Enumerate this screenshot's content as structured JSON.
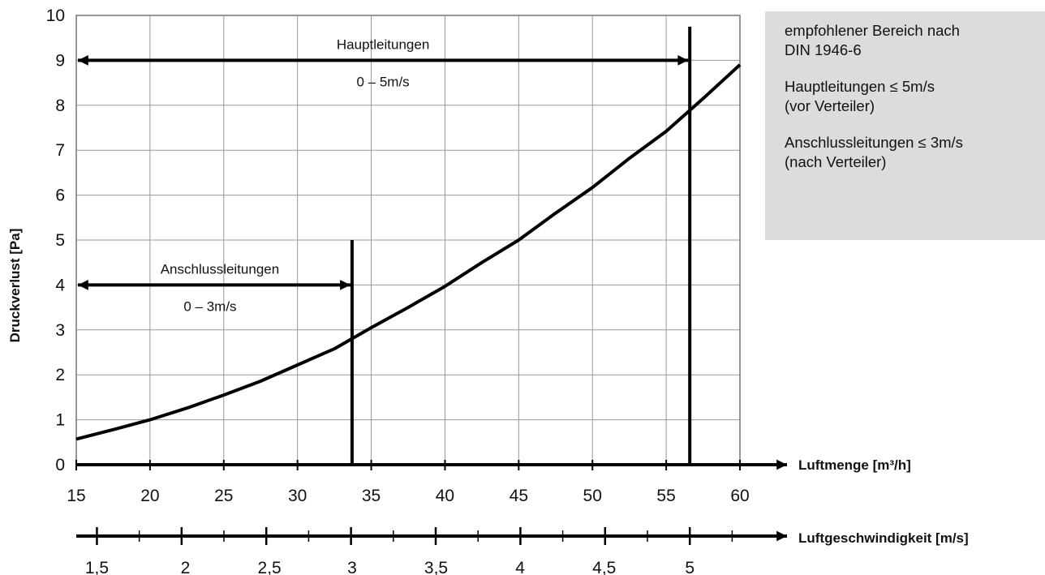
{
  "chart_data": {
    "type": "line",
    "title": "",
    "ylabel": "Druckverlust [Pa]",
    "xlabel": "Luftmenge [m³/h]",
    "xlabel2": "Luftgeschwindigkeit [m/s]",
    "xlim": [
      15,
      60
    ],
    "ylim": [
      0,
      10
    ],
    "grid": true,
    "y_ticks": [
      "0",
      "1",
      "2",
      "3",
      "4",
      "5",
      "6",
      "7",
      "8",
      "9",
      "10"
    ],
    "x_ticks": [
      "15",
      "20",
      "25",
      "30",
      "35",
      "40",
      "45",
      "50",
      "55",
      "60"
    ],
    "velocity_ticks": [
      {
        "label": "1,5",
        "flow": 16.4
      },
      {
        "label": "2",
        "flow": 22.4
      },
      {
        "label": "2,5",
        "flow": 28.1
      },
      {
        "label": "3",
        "flow": 33.7
      },
      {
        "label": "3,5",
        "flow": 39.4
      },
      {
        "label": "4",
        "flow": 45.1
      },
      {
        "label": "4,5",
        "flow": 50.8
      },
      {
        "label": "5",
        "flow": 56.6
      }
    ],
    "series": [
      {
        "x": [
          15,
          17.5,
          20,
          22.5,
          25,
          27.5,
          30,
          32.5,
          35,
          37.5,
          40,
          42.5,
          45,
          47.5,
          50,
          52.5,
          55,
          57.5,
          60
        ],
        "y": [
          0.57,
          0.78,
          1.0,
          1.26,
          1.55,
          1.86,
          2.22,
          2.58,
          3.05,
          3.5,
          3.97,
          4.5,
          5.0,
          5.6,
          6.17,
          6.82,
          7.42,
          8.15,
          8.9
        ]
      }
    ],
    "markers": [
      {
        "flow": 33.7,
        "y_top": 5.0
      },
      {
        "flow": 56.6,
        "y_top": 9.75
      }
    ],
    "annotations": [
      {
        "label": "Hauptleitungen",
        "range": "0 – 5m/s",
        "y": 9,
        "x_end": 56.6
      },
      {
        "label": "Anschlussleitungen",
        "range": "0 – 3m/s",
        "y": 4,
        "x_end": 33.7
      }
    ],
    "legend_box": {
      "line1a": "empfohlener Bereich nach",
      "line1b": "DIN 1946-6",
      "line2a": "Hauptleitungen ≤ 5m/s",
      "line2b": "(vor Verteiler)",
      "line3a": "Anschlussleitungen ≤ 3m/s",
      "line3b": "(nach Verteiler)"
    }
  }
}
